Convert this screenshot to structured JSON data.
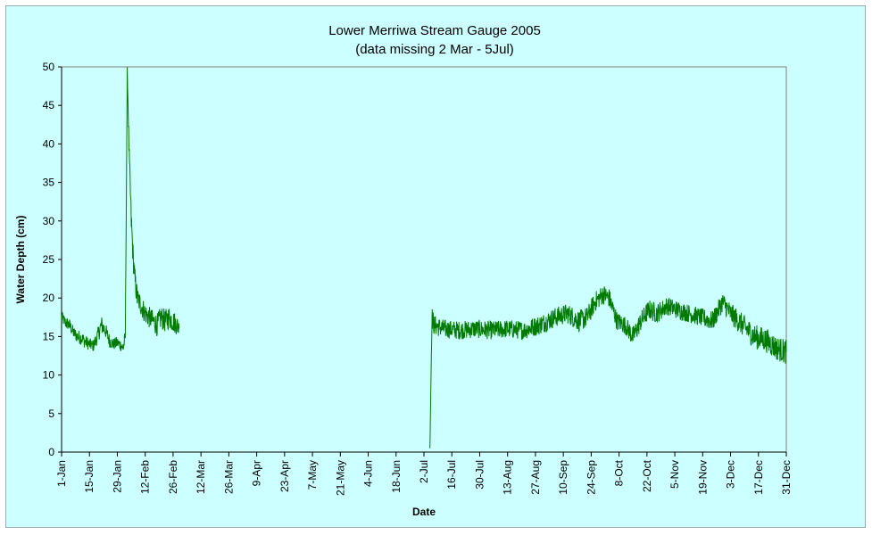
{
  "chart_data": {
    "type": "line",
    "title": "Lower Merriwa Stream Gauge 2005",
    "subtitle": "(data missing 2 Mar - 5Jul)",
    "xlabel": "Date",
    "ylabel": "Water Depth (cm)",
    "ylim": [
      0,
      50
    ],
    "yticks": [
      0,
      5,
      10,
      15,
      20,
      25,
      30,
      35,
      40,
      45,
      50
    ],
    "xlim": [
      "2005-01-01",
      "2005-12-31"
    ],
    "xtick_labels": [
      "1-Jan",
      "15-Jan",
      "29-Jan",
      "12-Feb",
      "26-Feb",
      "12-Mar",
      "26-Mar",
      "9-Apr",
      "23-Apr",
      "7-May",
      "21-May",
      "4-Jun",
      "18-Jun",
      "2-Jul",
      "16-Jul",
      "30-Jul",
      "13-Aug",
      "27-Aug",
      "10-Sep",
      "24-Sep",
      "8-Oct",
      "22-Oct",
      "5-Nov",
      "19-Nov",
      "3-Dec",
      "17-Dec",
      "31-Dec"
    ],
    "grid": false,
    "legend": "none",
    "line_color": "#007a00",
    "series": [
      {
        "values_note_free": true,
        "segments": [
          {
            "x": [
              "2005-01-01",
              "2005-01-03",
              "2005-01-05",
              "2005-01-07",
              "2005-01-09",
              "2005-01-11",
              "2005-01-13",
              "2005-01-15",
              "2005-01-17",
              "2005-01-19",
              "2005-01-21",
              "2005-01-23",
              "2005-01-25",
              "2005-01-27",
              "2005-01-29",
              "2005-01-31",
              "2005-02-01",
              "2005-02-02",
              "2005-02-03",
              "2005-02-04",
              "2005-02-05",
              "2005-02-06",
              "2005-02-07",
              "2005-02-08",
              "2005-02-10",
              "2005-02-12",
              "2005-02-14",
              "2005-02-16",
              "2005-02-18",
              "2005-02-20",
              "2005-02-22",
              "2005-02-24",
              "2005-02-26",
              "2005-02-28",
              "2005-03-01"
            ],
            "y": [
              17.5,
              16.8,
              16.5,
              15.5,
              15.0,
              14.8,
              14.3,
              14.0,
              13.8,
              15.0,
              16.5,
              15.8,
              14.5,
              14.0,
              14.2,
              13.8,
              13.5,
              15.0,
              49.5,
              38.0,
              30.0,
              25.0,
              22.0,
              20.0,
              19.0,
              18.0,
              17.5,
              17.0,
              16.5,
              17.5,
              17.0,
              17.5,
              17.0,
              16.5,
              16.0
            ],
            "spread": [
              0.8,
              0.8,
              0.8,
              0.8,
              0.9,
              0.9,
              0.9,
              0.8,
              0.8,
              1.0,
              1.2,
              1.0,
              0.9,
              0.8,
              0.8,
              0.8,
              0.8,
              1.0,
              0.5,
              1.5,
              2.0,
              1.5,
              1.5,
              1.5,
              1.4,
              1.4,
              1.4,
              1.4,
              1.5,
              1.5,
              1.5,
              1.5,
              1.5,
              1.3,
              1.2
            ]
          },
          {
            "x": [
              "2005-07-05",
              "2005-07-06",
              "2005-07-07",
              "2005-07-12",
              "2005-07-20",
              "2005-07-28",
              "2005-08-05",
              "2005-08-13",
              "2005-08-21",
              "2005-08-29",
              "2005-09-06",
              "2005-09-12",
              "2005-09-18",
              "2005-09-22",
              "2005-09-26",
              "2005-09-30",
              "2005-10-03",
              "2005-10-07",
              "2005-10-11",
              "2005-10-15",
              "2005-10-19",
              "2005-10-23",
              "2005-10-27",
              "2005-11-01",
              "2005-11-06",
              "2005-11-12",
              "2005-11-18",
              "2005-11-24",
              "2005-11-29",
              "2005-12-03",
              "2005-12-09",
              "2005-12-15",
              "2005-12-21",
              "2005-12-26",
              "2005-12-31"
            ],
            "y": [
              0.5,
              17.5,
              16.5,
              16.0,
              15.8,
              16.0,
              15.8,
              16.0,
              15.8,
              16.5,
              17.5,
              18.0,
              17.0,
              17.5,
              19.5,
              20.5,
              20.0,
              17.0,
              16.5,
              15.0,
              17.0,
              18.5,
              18.0,
              19.0,
              18.5,
              18.0,
              17.5,
              17.0,
              19.5,
              18.0,
              16.5,
              15.0,
              14.5,
              13.5,
              13.0
            ],
            "spread": [
              0.0,
              1.5,
              1.3,
              1.2,
              1.2,
              1.2,
              1.2,
              1.2,
              1.2,
              1.3,
              1.3,
              1.3,
              1.4,
              1.4,
              1.3,
              1.3,
              1.3,
              1.2,
              1.2,
              1.3,
              1.3,
              1.3,
              1.3,
              1.2,
              1.2,
              1.2,
              1.2,
              1.3,
              1.3,
              1.4,
              1.5,
              1.6,
              1.6,
              1.6,
              1.6
            ]
          }
        ]
      }
    ]
  }
}
